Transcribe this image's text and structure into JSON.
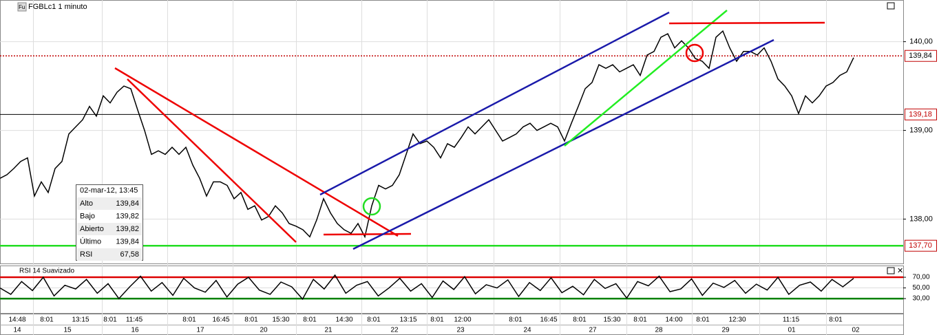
{
  "header": {
    "icon": "Fu",
    "symbol": "FGBLc1 1 minuto"
  },
  "tooltip": {
    "date": "02-mar-12, 13:45",
    "rows": [
      [
        "Alto",
        "139,84"
      ],
      [
        "Bajo",
        "139,82"
      ],
      [
        "Abierto",
        "139,82"
      ],
      [
        "Último",
        "139,84"
      ],
      [
        "RSI",
        "67,58"
      ]
    ]
  },
  "x_axis": {
    "times": [
      "14:48",
      "8:01",
      "13:15",
      "8:01",
      "11:45",
      "8:01",
      "16:45",
      "8:01",
      "15:30",
      "8:01",
      "14:30",
      "8:01",
      "13:15",
      "8:01",
      "12:00",
      "8:01",
      "16:45",
      "8:01",
      "15:30",
      "8:01",
      "14:00",
      "8:01",
      "12:30",
      "11:15",
      "8:01"
    ],
    "dates": [
      "14",
      "15",
      "16",
      "17",
      "20",
      "21",
      "22",
      "23",
      "24",
      "27",
      "28",
      "29",
      "01",
      "02"
    ]
  },
  "chart_data": [
    {
      "type": "line",
      "color": "#000000",
      "ylim": [
        137.5,
        140.47
      ],
      "yticks": [
        {
          "value": 138,
          "label": "138,00"
        },
        {
          "value": 139,
          "label": "139,00"
        },
        {
          "value": 140,
          "label": "140,00"
        }
      ],
      "levels": [
        {
          "value": 139.84,
          "label": "139,84",
          "color": "#c00000",
          "style": "dotted"
        },
        {
          "value": 139.18,
          "label": "139,18",
          "color": "#000000",
          "style": "solid"
        },
        {
          "value": 137.7,
          "label": "137,70",
          "color": "#22dd22",
          "style": "solid"
        }
      ],
      "values": [
        138.46,
        138.5,
        138.57,
        138.65,
        138.69,
        138.26,
        138.42,
        138.3,
        138.57,
        138.65,
        138.96,
        139.04,
        139.12,
        139.27,
        139.16,
        139.39,
        139.31,
        139.43,
        139.5,
        139.47,
        139.23,
        139.0,
        138.73,
        138.77,
        138.73,
        138.81,
        138.73,
        138.81,
        138.61,
        138.46,
        138.26,
        138.42,
        138.42,
        138.38,
        138.23,
        138.3,
        138.11,
        138.15,
        137.99,
        138.03,
        138.15,
        138.07,
        137.95,
        137.92,
        137.88,
        137.8,
        137.99,
        138.23,
        138.07,
        137.95,
        137.88,
        137.84,
        137.95,
        137.8,
        138.15,
        138.38,
        138.34,
        138.38,
        138.5,
        138.73,
        138.96,
        138.85,
        138.88,
        138.81,
        138.69,
        138.85,
        138.81,
        138.92,
        139.04,
        138.96,
        139.04,
        139.12,
        139.0,
        138.88,
        138.92,
        138.96,
        139.04,
        139.08,
        139.0,
        139.04,
        139.08,
        139.04,
        138.88,
        139.08,
        139.27,
        139.47,
        139.54,
        139.74,
        139.7,
        139.74,
        139.66,
        139.7,
        139.74,
        139.62,
        139.85,
        139.89,
        140.05,
        140.09,
        139.93,
        140.01,
        139.93,
        139.81,
        139.78,
        139.7,
        140.05,
        140.12,
        139.93,
        139.78,
        139.89,
        139.89,
        139.85,
        139.93,
        139.78,
        139.58,
        139.5,
        139.39,
        139.19,
        139.39,
        139.31,
        139.39,
        139.5,
        139.54,
        139.62,
        139.66,
        139.82
      ]
    },
    {
      "type": "line",
      "title": "RSI 14 Suavizado",
      "color": "#000000",
      "ylim": [
        3,
        92
      ],
      "yticks": [
        {
          "value": 70,
          "label": "70,00"
        },
        {
          "value": 50,
          "label": "50,00"
        },
        {
          "value": 30,
          "label": "30,00"
        }
      ],
      "levels": [
        {
          "value": 70,
          "color": "#dd0000",
          "style": "solid"
        },
        {
          "value": 30,
          "color": "#008000",
          "style": "solid"
        }
      ],
      "values": [
        50,
        38,
        62,
        45,
        70,
        35,
        55,
        48,
        66,
        40,
        58,
        30,
        52,
        72,
        44,
        60,
        36,
        68,
        50,
        42,
        64,
        33,
        57,
        70,
        46,
        38,
        61,
        52,
        29,
        66,
        48,
        74,
        40,
        55,
        62,
        35,
        50,
        68,
        44,
        58,
        32,
        63,
        47,
        71,
        39,
        56,
        50,
        65,
        34,
        60,
        45,
        69,
        41,
        53,
        37,
        66,
        49,
        58,
        31,
        62,
        54,
        72,
        43,
        48,
        67,
        36,
        59,
        51,
        64,
        40,
        57,
        46,
        70,
        38,
        55,
        61,
        44,
        66,
        52,
        68
      ]
    }
  ]
}
